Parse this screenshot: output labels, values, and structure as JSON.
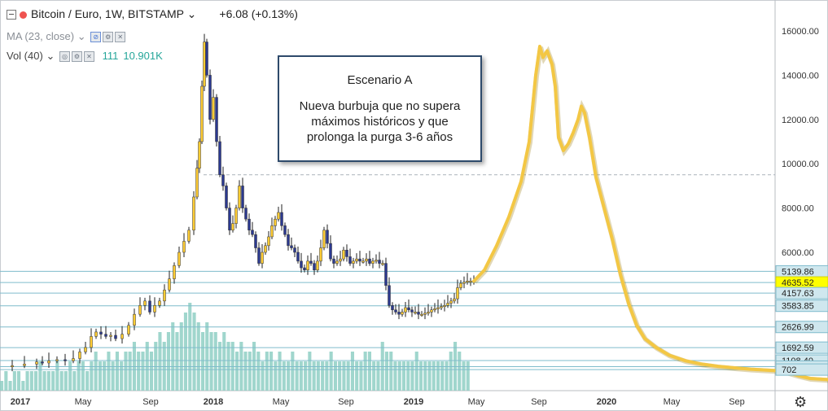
{
  "header": {
    "symbol": "Bitcoin / Euro, 1W, BITSTAMP",
    "chevron": "⌄",
    "change": "+6.08 (+0.13%)",
    "ma_label": "MA (23, close)",
    "vol_label": "Vol (40)",
    "vol_value_1": "111",
    "vol_value_2": "10.901K"
  },
  "annotation": {
    "title": "Escenario A",
    "body_line1": "Nueva burbuja que no  supera",
    "body_line2": "máximos históricos y que",
    "body_line3": "prolonga la purga 3-6 años"
  },
  "icons": {
    "gear": "gear-icon",
    "collapse": "collapse-icon",
    "symbol_dot": "status-dot-icon"
  },
  "colors": {
    "up": "#ffcc33",
    "down": "#2b3990",
    "projection": "#f3c744",
    "volume": "#8fcfc4",
    "level_line": "#7fbccc",
    "current_price_bg": "#ffff00"
  },
  "chart_data": {
    "type": "candlestick",
    "ylim": [
      0,
      16800
    ],
    "y_ticks": [
      "16000.00",
      "14000.00",
      "12000.00",
      "10000.00",
      "8000.00",
      "6000.00"
    ],
    "x_ticks": [
      "2017",
      "May",
      "Sep",
      "2018",
      "May",
      "Sep",
      "2019",
      "May",
      "Sep",
      "2020",
      "May",
      "Sep"
    ],
    "levels": [
      {
        "label": "5139.86",
        "value": 5139.86
      },
      {
        "label": "4635.52",
        "value": 4635.52,
        "highlight": true
      },
      {
        "label": "4157.63",
        "value": 4157.63
      },
      {
        "label": "3583.85",
        "value": 3583.85
      },
      {
        "label": "2626.99",
        "value": 2626.99
      },
      {
        "label": "1692.59",
        "value": 1692.59
      },
      {
        "label": "1108.40",
        "value": 1108.4
      },
      {
        "label": "835.07",
        "value": 835.07
      },
      {
        "label": "702",
        "value": 702
      }
    ],
    "dashed_level": 9500,
    "price_path": [
      [
        0,
        850
      ],
      [
        15,
        880
      ],
      [
        30,
        950
      ],
      [
        45,
        1050
      ],
      [
        52,
        1000
      ],
      [
        60,
        1100
      ],
      [
        70,
        1150
      ],
      [
        80,
        1100
      ],
      [
        90,
        1200
      ],
      [
        98,
        1500
      ],
      [
        105,
        1700
      ],
      [
        112,
        2200
      ],
      [
        118,
        2400
      ],
      [
        124,
        2300
      ],
      [
        130,
        2200
      ],
      [
        136,
        2250
      ],
      [
        142,
        2100
      ],
      [
        150,
        2300
      ],
      [
        158,
        2700
      ],
      [
        165,
        3200
      ],
      [
        172,
        3600
      ],
      [
        178,
        3800
      ],
      [
        184,
        3300
      ],
      [
        190,
        3600
      ],
      [
        196,
        3800
      ],
      [
        202,
        4300
      ],
      [
        208,
        4800
      ],
      [
        214,
        5400
      ],
      [
        220,
        6000
      ],
      [
        226,
        6500
      ],
      [
        232,
        7000
      ],
      [
        238,
        8500
      ],
      [
        242,
        9800
      ],
      [
        245,
        11000
      ],
      [
        248,
        13500
      ],
      [
        251,
        15500
      ],
      [
        254,
        14000
      ],
      [
        258,
        12000
      ],
      [
        262,
        13000
      ],
      [
        266,
        11000
      ],
      [
        270,
        9500
      ],
      [
        274,
        9000
      ],
      [
        278,
        8000
      ],
      [
        282,
        7000
      ],
      [
        286,
        7300
      ],
      [
        290,
        8000
      ],
      [
        294,
        9000
      ],
      [
        298,
        8000
      ],
      [
        302,
        7500
      ],
      [
        306,
        7000
      ],
      [
        310,
        6800
      ],
      [
        314,
        6200
      ],
      [
        318,
        5500
      ],
      [
        322,
        6000
      ],
      [
        326,
        6300
      ],
      [
        330,
        6700
      ],
      [
        334,
        7200
      ],
      [
        338,
        7500
      ],
      [
        342,
        7800
      ],
      [
        346,
        7200
      ],
      [
        350,
        6800
      ],
      [
        354,
        6300
      ],
      [
        358,
        6200
      ],
      [
        362,
        6000
      ],
      [
        366,
        5600
      ],
      [
        370,
        5300
      ],
      [
        374,
        5200
      ],
      [
        378,
        5600
      ],
      [
        382,
        5500
      ],
      [
        386,
        5200
      ],
      [
        390,
        5600
      ],
      [
        394,
        6200
      ],
      [
        398,
        7000
      ],
      [
        402,
        6400
      ],
      [
        406,
        5700
      ],
      [
        410,
        5500
      ],
      [
        414,
        5600
      ],
      [
        418,
        5700
      ],
      [
        422,
        6100
      ],
      [
        426,
        5800
      ],
      [
        430,
        5500
      ],
      [
        434,
        5600
      ],
      [
        438,
        5700
      ],
      [
        442,
        5600
      ],
      [
        446,
        5600
      ],
      [
        450,
        5700
      ],
      [
        454,
        5500
      ],
      [
        458,
        5600
      ],
      [
        462,
        5650
      ],
      [
        466,
        5500
      ],
      [
        470,
        5500
      ],
      [
        474,
        4500
      ],
      [
        478,
        3600
      ],
      [
        482,
        3400
      ],
      [
        486,
        3300
      ],
      [
        490,
        3200
      ],
      [
        494,
        3300
      ],
      [
        498,
        3500
      ],
      [
        502,
        3400
      ],
      [
        506,
        3300
      ],
      [
        510,
        3300
      ],
      [
        514,
        3200
      ],
      [
        518,
        3200
      ],
      [
        522,
        3250
      ],
      [
        526,
        3300
      ],
      [
        530,
        3400
      ],
      [
        534,
        3450
      ],
      [
        538,
        3500
      ],
      [
        542,
        3550
      ],
      [
        546,
        3600
      ],
      [
        550,
        3700
      ],
      [
        554,
        3800
      ],
      [
        558,
        3900
      ],
      [
        562,
        4400
      ],
      [
        566,
        4600
      ],
      [
        570,
        4650
      ],
      [
        574,
        4700
      ],
      [
        578,
        4700
      ],
      [
        582,
        4650
      ]
    ],
    "volumes": [
      1,
      2,
      1,
      2,
      2,
      1,
      2,
      2,
      2,
      3,
      2,
      2,
      2,
      3,
      2,
      2,
      3,
      2,
      3,
      3,
      2,
      3,
      4,
      3,
      3,
      4,
      3,
      4,
      3,
      4,
      4,
      5,
      4,
      4,
      5,
      4,
      5,
      6,
      5,
      6,
      7,
      6,
      7,
      8,
      9,
      8,
      7,
      6,
      7,
      6,
      6,
      5,
      6,
      5,
      5,
      4,
      5,
      4,
      4,
      5,
      4,
      3,
      4,
      4,
      3,
      4,
      3,
      3,
      4,
      3,
      3,
      3,
      4,
      3,
      3,
      3,
      3,
      4,
      3,
      3,
      3,
      3,
      4,
      3,
      3,
      4,
      4,
      3,
      3,
      5,
      4,
      4,
      3,
      3,
      3,
      3,
      3,
      4,
      3,
      3,
      3,
      3,
      3,
      3,
      3,
      4,
      5,
      4,
      3,
      3
    ],
    "projection": [
      [
        582,
        4700
      ],
      [
        595,
        5200
      ],
      [
        610,
        6300
      ],
      [
        625,
        7600
      ],
      [
        640,
        9200
      ],
      [
        650,
        11000
      ],
      [
        658,
        14000
      ],
      [
        663,
        15300
      ],
      [
        667,
        14800
      ],
      [
        672,
        15100
      ],
      [
        678,
        14500
      ],
      [
        682,
        13500
      ],
      [
        686,
        11200
      ],
      [
        692,
        10600
      ],
      [
        698,
        10900
      ],
      [
        704,
        11400
      ],
      [
        710,
        12000
      ],
      [
        714,
        12600
      ],
      [
        718,
        12300
      ],
      [
        724,
        11200
      ],
      [
        732,
        9400
      ],
      [
        742,
        8000
      ],
      [
        752,
        6600
      ],
      [
        762,
        5000
      ],
      [
        772,
        3700
      ],
      [
        782,
        2700
      ],
      [
        792,
        2100
      ],
      [
        806,
        1700
      ],
      [
        822,
        1350
      ],
      [
        842,
        1100
      ],
      [
        862,
        950
      ],
      [
        882,
        850
      ],
      [
        902,
        780
      ],
      [
        922,
        720
      ],
      [
        942,
        680
      ],
      [
        955,
        650
      ],
      [
        965,
        600
      ],
      [
        980,
        430
      ],
      [
        995,
        300
      ],
      [
        1017,
        250
      ]
    ]
  }
}
